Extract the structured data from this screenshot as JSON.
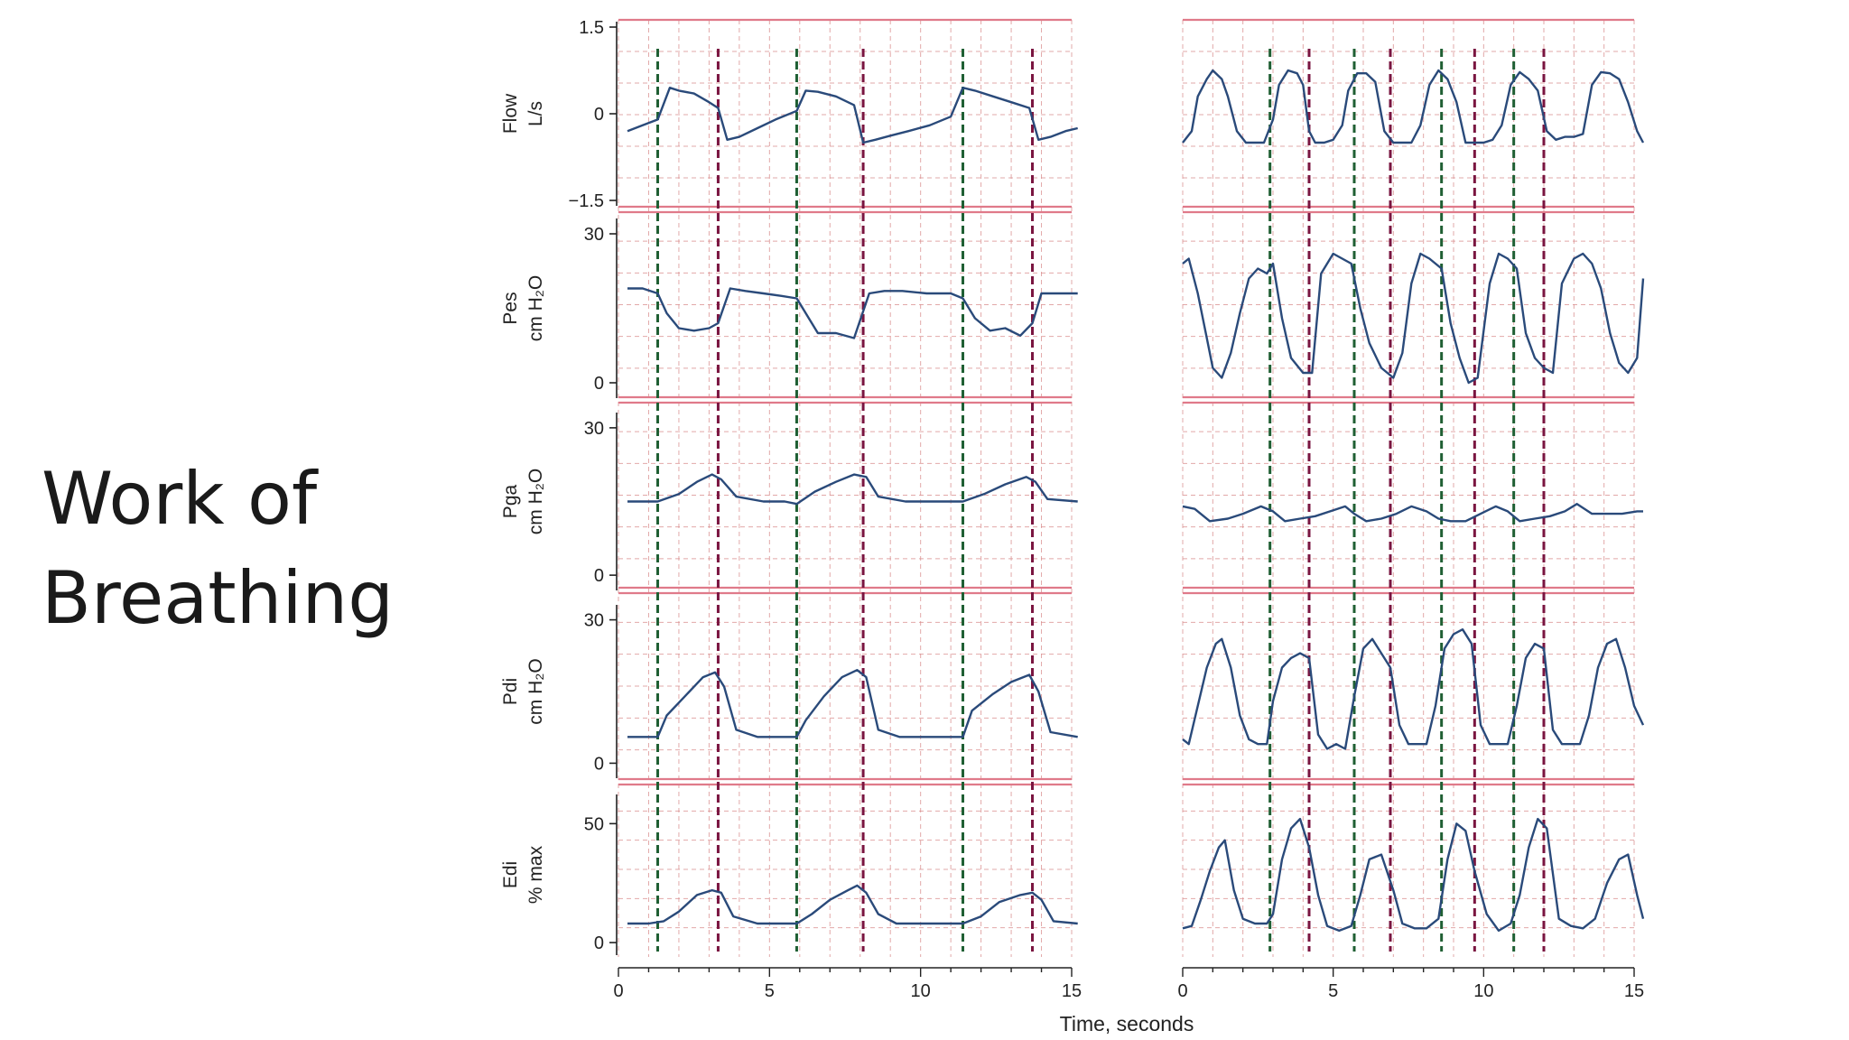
{
  "slide": {
    "title_line1": "Work of",
    "title_line2": "Breathing"
  },
  "chart_data": {
    "type": "line",
    "xlabel": "Time, seconds",
    "xlim": [
      0,
      15
    ],
    "xticks": [
      0,
      5,
      10,
      15
    ],
    "colors": {
      "trace": "#2a4a7a",
      "inspiration_marker": "#1f5f33",
      "expiration_marker": "#7a1540",
      "separator": "#e07a8a",
      "grid": "#d98c8c"
    },
    "panel_groups": [
      "left",
      "right"
    ],
    "rows": [
      {
        "name": "Flow",
        "unit": "L/s",
        "ylim": [
          -1.5,
          1.5
        ],
        "yticks": [
          -1.5,
          0,
          1.5
        ],
        "ytick_labels": [
          "−1.5",
          "0",
          "1.5"
        ]
      },
      {
        "name": "Pes",
        "unit": "cm H₂O",
        "ylim": [
          -2,
          32
        ],
        "yticks": [
          0,
          30
        ],
        "ytick_labels": [
          "0",
          "30"
        ]
      },
      {
        "name": "Pga",
        "unit": "cm H₂O",
        "ylim": [
          -2,
          32
        ],
        "yticks": [
          0,
          30
        ],
        "ytick_labels": [
          "0",
          "30"
        ]
      },
      {
        "name": "Pdi",
        "unit": "cm H₂O",
        "ylim": [
          -2,
          32
        ],
        "yticks": [
          0,
          30
        ],
        "ytick_labels": [
          "0",
          "30"
        ]
      },
      {
        "name": "Edi",
        "unit": "% max",
        "ylim": [
          -3,
          60
        ],
        "yticks": [
          0,
          50
        ],
        "ytick_labels": [
          "0",
          "50"
        ]
      }
    ],
    "markers": {
      "left": {
        "inspiration": [
          1.3,
          5.9,
          11.4
        ],
        "expiration": [
          3.3,
          8.1,
          13.7
        ]
      },
      "right": {
        "inspiration": [
          2.9,
          5.7,
          8.6,
          11.0
        ],
        "expiration": [
          4.2,
          6.9,
          9.7,
          12.0
        ]
      }
    },
    "series": [
      {
        "panel": "left",
        "row": "Flow",
        "x": [
          0.3,
          0.8,
          1.3,
          1.7,
          2.0,
          2.5,
          3.0,
          3.3,
          3.6,
          4.0,
          4.6,
          5.2,
          5.9,
          6.2,
          6.6,
          7.2,
          7.8,
          8.1,
          8.5,
          9.0,
          9.6,
          10.3,
          11.0,
          11.4,
          11.8,
          12.4,
          13.0,
          13.6,
          13.9,
          14.3,
          14.8,
          15.2
        ],
        "y": [
          -0.3,
          -0.2,
          -0.1,
          0.45,
          0.4,
          0.35,
          0.2,
          0.1,
          -0.45,
          -0.4,
          -0.25,
          -0.1,
          0.05,
          0.4,
          0.38,
          0.3,
          0.15,
          -0.5,
          -0.45,
          -0.38,
          -0.3,
          -0.2,
          -0.05,
          0.45,
          0.4,
          0.3,
          0.2,
          0.1,
          -0.45,
          -0.4,
          -0.3,
          -0.25
        ]
      },
      {
        "panel": "left",
        "row": "Pes",
        "x": [
          0.3,
          0.8,
          1.3,
          1.6,
          2.0,
          2.5,
          3.0,
          3.3,
          3.7,
          4.2,
          4.8,
          5.4,
          5.9,
          6.2,
          6.6,
          7.2,
          7.8,
          8.3,
          8.8,
          9.4,
          10.2,
          11.0,
          11.4,
          11.8,
          12.3,
          12.8,
          13.3,
          13.7,
          14.0,
          14.4,
          15.2
        ],
        "y": [
          19,
          19,
          18,
          14,
          11,
          10.5,
          11,
          12,
          19,
          18.5,
          18,
          17.5,
          17,
          14,
          10,
          10,
          9,
          18,
          18.5,
          18.5,
          18,
          18,
          17,
          13,
          10.5,
          11,
          9.5,
          12,
          18,
          18,
          18
        ]
      },
      {
        "panel": "left",
        "row": "Pga",
        "x": [
          0.3,
          1.3,
          2.0,
          2.6,
          3.1,
          3.4,
          3.9,
          4.8,
          5.5,
          5.9,
          6.5,
          7.2,
          7.8,
          8.2,
          8.6,
          9.5,
          10.5,
          11.4,
          12.1,
          12.8,
          13.5,
          13.8,
          14.2,
          15.2
        ],
        "y": [
          15,
          15,
          16.5,
          19,
          20.5,
          19.5,
          16,
          15,
          15,
          14.5,
          17,
          19,
          20.5,
          20,
          16,
          15,
          15,
          15,
          16.5,
          18.5,
          20,
          19,
          15.5,
          15
        ]
      },
      {
        "panel": "left",
        "row": "Pdi",
        "x": [
          0.3,
          1.3,
          1.6,
          2.2,
          2.8,
          3.2,
          3.5,
          3.9,
          4.6,
          5.4,
          5.9,
          6.2,
          6.8,
          7.4,
          7.9,
          8.2,
          8.6,
          9.3,
          10.4,
          11.4,
          11.7,
          12.4,
          13.0,
          13.6,
          13.9,
          14.3,
          15.2
        ],
        "y": [
          5.5,
          5.5,
          10,
          14,
          18,
          19,
          16,
          7,
          5.5,
          5.5,
          5.5,
          9,
          14,
          18,
          19.5,
          18,
          7,
          5.5,
          5.5,
          5.5,
          11,
          14.5,
          17,
          18.5,
          15,
          6.5,
          5.5
        ]
      },
      {
        "panel": "left",
        "row": "Edi",
        "x": [
          0.3,
          1.0,
          1.5,
          2.0,
          2.6,
          3.1,
          3.4,
          3.8,
          4.6,
          5.4,
          5.9,
          6.4,
          7.0,
          7.6,
          7.9,
          8.2,
          8.6,
          9.2,
          10.2,
          11.4,
          12.0,
          12.6,
          13.3,
          13.7,
          14.0,
          14.4,
          15.2
        ],
        "y": [
          8,
          8,
          9,
          13,
          20,
          22,
          21,
          11,
          8,
          8,
          8,
          12,
          18,
          22,
          24,
          21,
          12,
          8,
          8,
          8,
          11,
          17,
          20,
          21,
          18,
          9,
          8
        ]
      },
      {
        "panel": "right",
        "row": "Flow",
        "x": [
          0.0,
          0.3,
          0.5,
          0.8,
          1.0,
          1.3,
          1.5,
          1.8,
          2.1,
          2.4,
          2.7,
          3.0,
          3.2,
          3.5,
          3.8,
          4.0,
          4.2,
          4.4,
          4.7,
          5.0,
          5.3,
          5.5,
          5.8,
          6.1,
          6.4,
          6.7,
          7.0,
          7.3,
          7.6,
          7.9,
          8.2,
          8.5,
          8.8,
          9.1,
          9.4,
          9.7,
          10.0,
          10.3,
          10.6,
          10.9,
          11.2,
          11.5,
          11.8,
          12.1,
          12.4,
          12.7,
          13.0,
          13.3,
          13.6,
          13.9,
          14.2,
          14.5,
          14.8,
          15.1,
          15.3
        ],
        "y": [
          -0.5,
          -0.3,
          0.3,
          0.6,
          0.75,
          0.6,
          0.3,
          -0.3,
          -0.5,
          -0.5,
          -0.5,
          -0.1,
          0.5,
          0.75,
          0.7,
          0.5,
          -0.3,
          -0.5,
          -0.5,
          -0.45,
          -0.2,
          0.4,
          0.7,
          0.7,
          0.55,
          -0.3,
          -0.5,
          -0.5,
          -0.5,
          -0.2,
          0.5,
          0.75,
          0.6,
          0.2,
          -0.5,
          -0.5,
          -0.5,
          -0.45,
          -0.2,
          0.5,
          0.72,
          0.6,
          0.4,
          -0.3,
          -0.45,
          -0.4,
          -0.4,
          -0.35,
          0.5,
          0.72,
          0.7,
          0.6,
          0.2,
          -0.3,
          -0.5
        ]
      },
      {
        "panel": "right",
        "row": "Pes",
        "x": [
          0.0,
          0.2,
          0.5,
          0.8,
          1.0,
          1.3,
          1.6,
          1.9,
          2.2,
          2.5,
          2.8,
          3.0,
          3.3,
          3.6,
          4.0,
          4.3,
          4.6,
          5.0,
          5.3,
          5.6,
          5.9,
          6.2,
          6.6,
          7.0,
          7.3,
          7.6,
          7.9,
          8.2,
          8.6,
          8.9,
          9.2,
          9.5,
          9.8,
          10.2,
          10.5,
          10.8,
          11.1,
          11.4,
          11.7,
          12.0,
          12.3,
          12.6,
          13.0,
          13.3,
          13.6,
          13.9,
          14.2,
          14.5,
          14.8,
          15.1,
          15.3
        ],
        "y": [
          24,
          25,
          18,
          9,
          3,
          1,
          6,
          14,
          21,
          23,
          22,
          24,
          13,
          5,
          2,
          2,
          22,
          26,
          25,
          24,
          15,
          8,
          3,
          1,
          6,
          20,
          26,
          25,
          23,
          12,
          5,
          0,
          1,
          20,
          26,
          25,
          23,
          10,
          5,
          3,
          2,
          20,
          25,
          26,
          24,
          19,
          10,
          4,
          2,
          5,
          21
        ]
      },
      {
        "panel": "right",
        "row": "Pga",
        "x": [
          0.0,
          0.4,
          0.9,
          1.5,
          2.0,
          2.6,
          3.0,
          3.4,
          3.9,
          4.4,
          4.9,
          5.4,
          5.7,
          6.1,
          6.6,
          7.1,
          7.6,
          8.1,
          8.5,
          8.9,
          9.4,
          9.9,
          10.4,
          10.8,
          11.2,
          11.7,
          12.2,
          12.7,
          13.1,
          13.6,
          14.1,
          14.6,
          15.1,
          15.3
        ],
        "y": [
          14,
          13.5,
          11,
          11.5,
          12.5,
          14,
          13,
          11,
          11.5,
          12,
          13,
          14,
          12.5,
          11,
          11.5,
          12.5,
          14,
          13,
          11.5,
          11,
          11,
          12.5,
          14,
          13,
          11,
          11.5,
          12,
          13,
          14.5,
          12.5,
          12.5,
          12.5,
          13,
          13
        ]
      },
      {
        "panel": "right",
        "row": "Pdi",
        "x": [
          0.0,
          0.2,
          0.5,
          0.8,
          1.1,
          1.3,
          1.6,
          1.9,
          2.2,
          2.5,
          2.8,
          3.0,
          3.3,
          3.6,
          3.9,
          4.2,
          4.5,
          4.8,
          5.1,
          5.4,
          5.7,
          6.0,
          6.3,
          6.6,
          6.9,
          7.2,
          7.5,
          7.8,
          8.1,
          8.4,
          8.7,
          9.0,
          9.3,
          9.6,
          9.9,
          10.2,
          10.5,
          10.8,
          11.1,
          11.4,
          11.7,
          12.0,
          12.3,
          12.6,
          12.9,
          13.2,
          13.5,
          13.8,
          14.1,
          14.4,
          14.7,
          15.0,
          15.3
        ],
        "y": [
          5,
          4,
          12,
          20,
          25,
          26,
          20,
          10,
          5,
          4,
          4,
          13,
          20,
          22,
          23,
          22,
          6,
          3,
          4,
          3,
          14,
          24,
          26,
          23,
          20,
          8,
          4,
          4,
          4,
          12,
          24,
          27,
          28,
          25,
          8,
          4,
          4,
          4,
          12,
          22,
          25,
          24,
          7,
          4,
          4,
          4,
          10,
          20,
          25,
          26,
          20,
          12,
          8
        ]
      },
      {
        "panel": "right",
        "row": "Edi",
        "x": [
          0.0,
          0.3,
          0.6,
          0.9,
          1.2,
          1.4,
          1.7,
          2.0,
          2.4,
          2.8,
          3.0,
          3.3,
          3.6,
          3.9,
          4.2,
          4.5,
          4.8,
          5.2,
          5.6,
          5.9,
          6.2,
          6.6,
          7.0,
          7.3,
          7.7,
          8.1,
          8.5,
          8.8,
          9.1,
          9.4,
          9.7,
          10.1,
          10.5,
          10.9,
          11.2,
          11.5,
          11.8,
          12.1,
          12.5,
          12.9,
          13.3,
          13.7,
          14.1,
          14.5,
          14.8,
          15.1,
          15.3
        ],
        "y": [
          6,
          7,
          18,
          30,
          40,
          43,
          22,
          10,
          8,
          8,
          12,
          35,
          48,
          52,
          40,
          20,
          7,
          5,
          7,
          20,
          35,
          37,
          22,
          8,
          6,
          6,
          10,
          35,
          50,
          47,
          30,
          12,
          5,
          8,
          20,
          40,
          52,
          48,
          10,
          7,
          6,
          10,
          25,
          35,
          37,
          20,
          10
        ]
      }
    ]
  }
}
